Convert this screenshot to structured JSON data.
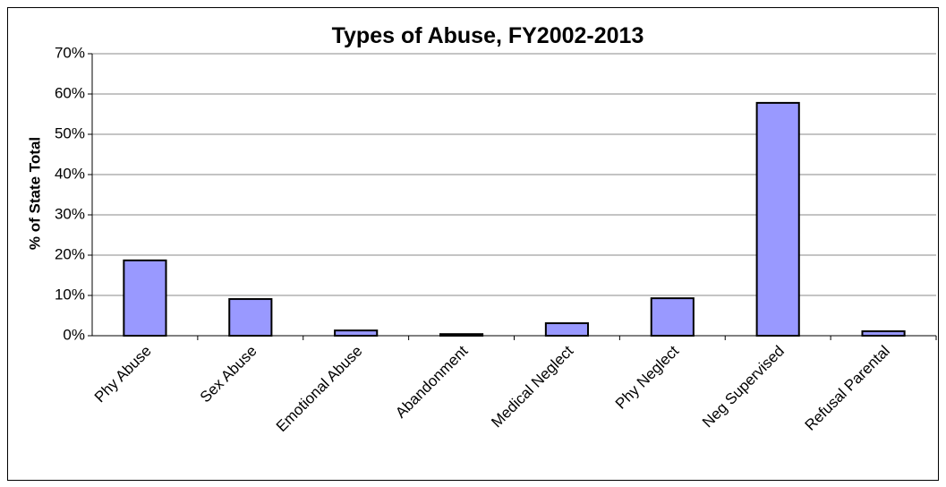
{
  "chart_data": {
    "type": "bar",
    "title": "Types of Abuse, FY2002-2013",
    "y_label": "% of State Total",
    "categories": [
      "Phy Abuse",
      "Sex Abuse",
      "Emotional Abuse",
      "Abandonment",
      "Medical Neglect",
      "Phy Neglect",
      "Neg Supervised",
      "Refusal Parental"
    ],
    "values": [
      18.7,
      9.1,
      1.3,
      0.4,
      3.1,
      9.3,
      57.8,
      1.1
    ],
    "color": "#9999ff",
    "ylim": [
      0,
      70
    ],
    "yticks": [
      {
        "value": 0,
        "label": "0%"
      },
      {
        "value": 10,
        "label": "10%"
      },
      {
        "value": 20,
        "label": "20%"
      },
      {
        "value": 30,
        "label": "30%"
      },
      {
        "value": 40,
        "label": "40%"
      },
      {
        "value": 50,
        "label": "50%"
      },
      {
        "value": 60,
        "label": "60%"
      },
      {
        "value": 70,
        "label": "70%"
      }
    ],
    "grid": true
  }
}
